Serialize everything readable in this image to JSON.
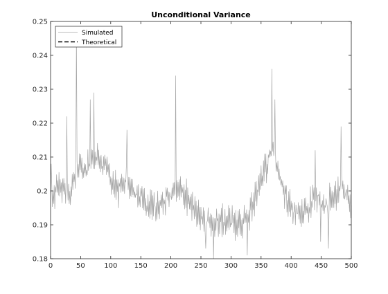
{
  "chart_data": {
    "type": "line",
    "title": "Unconditional Variance",
    "xlabel": "",
    "ylabel": "",
    "xlim": [
      0,
      500
    ],
    "ylim": [
      0.18,
      0.25
    ],
    "xticks": [
      0,
      50,
      100,
      150,
      200,
      250,
      300,
      350,
      400,
      450,
      500
    ],
    "xtick_labels": [
      "0",
      "50",
      "100",
      "150",
      "200",
      "250",
      "300",
      "350",
      "400",
      "450",
      "500"
    ],
    "yticks": [
      0.18,
      0.19,
      0.2,
      0.21,
      0.22,
      0.23,
      0.24,
      0.25
    ],
    "ytick_labels": [
      "0.18",
      "0.19",
      "0.2",
      "0.21",
      "0.22",
      "0.23",
      "0.24",
      "0.25"
    ],
    "grid": false,
    "legend_position": "top-left",
    "legend": [
      {
        "label": "Simulated",
        "style": "solid",
        "color": "#a6a6a6"
      },
      {
        "label": "Theoretical",
        "style": "dashed",
        "color": "#000000"
      }
    ],
    "series": [
      {
        "name": "Simulated",
        "color": "#a6a6a6",
        "style": "solid",
        "anchors": [
          [
            0,
            0.197
          ],
          [
            10,
            0.2
          ],
          [
            20,
            0.201
          ],
          [
            30,
            0.199
          ],
          [
            40,
            0.203
          ],
          [
            44,
            0.208
          ],
          [
            55,
            0.205
          ],
          [
            70,
            0.21
          ],
          [
            80,
            0.209
          ],
          [
            95,
            0.206
          ],
          [
            110,
            0.2
          ],
          [
            125,
            0.203
          ],
          [
            140,
            0.2
          ],
          [
            160,
            0.195
          ],
          [
            180,
            0.196
          ],
          [
            200,
            0.199
          ],
          [
            215,
            0.201
          ],
          [
            235,
            0.196
          ],
          [
            250,
            0.192
          ],
          [
            270,
            0.191
          ],
          [
            300,
            0.191
          ],
          [
            320,
            0.19
          ],
          [
            335,
            0.195
          ],
          [
            350,
            0.204
          ],
          [
            360,
            0.208
          ],
          [
            370,
            0.213
          ],
          [
            380,
            0.204
          ],
          [
            395,
            0.197
          ],
          [
            410,
            0.193
          ],
          [
            425,
            0.194
          ],
          [
            440,
            0.199
          ],
          [
            455,
            0.196
          ],
          [
            470,
            0.198
          ],
          [
            485,
            0.2
          ],
          [
            495,
            0.199
          ],
          [
            500,
            0.194
          ]
        ],
        "spikes": [
          [
            43,
            0.247
          ],
          [
            27,
            0.222
          ],
          [
            66,
            0.227
          ],
          [
            72,
            0.229
          ],
          [
            208,
            0.234
          ],
          [
            368,
            0.236
          ],
          [
            373,
            0.227
          ],
          [
            483,
            0.219
          ],
          [
            440,
            0.212
          ],
          [
            127,
            0.218
          ],
          [
            1,
            0.208
          ],
          [
            271,
            0.18
          ],
          [
            327,
            0.181
          ],
          [
            258,
            0.183
          ],
          [
            462,
            0.183
          ],
          [
            449,
            0.185
          ]
        ],
        "noise_amplitude": 0.0045,
        "samples": 501
      },
      {
        "name": "Theoretical",
        "color": "#000000",
        "style": "dashed",
        "values": []
      }
    ]
  }
}
